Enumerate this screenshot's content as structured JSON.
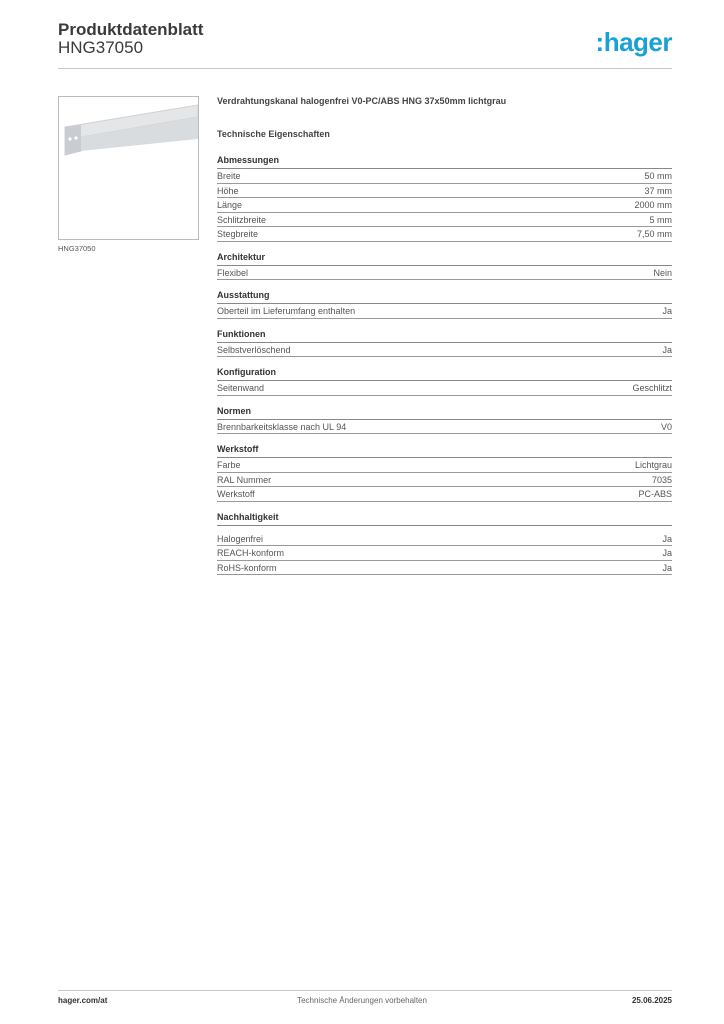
{
  "header": {
    "title": "Produktdatenblatt",
    "code": "HNG37050",
    "logo": ":hager",
    "logo_color": "#1aa0d8"
  },
  "image": {
    "caption": "HNG37050"
  },
  "product": {
    "name": "Verdrahtungskanal halogenfrei V0-PC/ABS HNG 37x50mm lichtgrau",
    "tech_heading": "Technische Eigenschaften"
  },
  "sections": [
    {
      "title": "Abmessungen",
      "rows": [
        [
          "Breite",
          "50 mm"
        ],
        [
          "Höhe",
          "37 mm"
        ],
        [
          "Länge",
          "2000 mm"
        ],
        [
          "Schlitzbreite",
          "5 mm"
        ],
        [
          "Stegbreite",
          "7,50 mm"
        ]
      ]
    },
    {
      "title": "Architektur",
      "rows": [
        [
          "Flexibel",
          "Nein"
        ]
      ]
    },
    {
      "title": "Ausstattung",
      "rows": [
        [
          "Oberteil im Lieferumfang enthalten",
          "Ja"
        ]
      ]
    },
    {
      "title": "Funktionen",
      "rows": [
        [
          "Selbstverlöschend",
          "Ja"
        ]
      ]
    },
    {
      "title": "Konfiguration",
      "rows": [
        [
          "Seitenwand",
          "Geschlitzt"
        ]
      ]
    },
    {
      "title": "Normen",
      "rows": [
        [
          "Brennbarkeitsklasse nach UL 94",
          "V0"
        ]
      ]
    },
    {
      "title": "Werkstoff",
      "rows": [
        [
          "Farbe",
          "Lichtgrau"
        ],
        [
          "RAL Nummer",
          "7035"
        ],
        [
          "Werkstoff",
          "PC-ABS"
        ]
      ]
    },
    {
      "title": "Nachhaltigkeit",
      "rows": [
        [
          "Halogenfrei",
          "Ja"
        ],
        [
          "REACH-konform",
          "Ja"
        ],
        [
          "RoHS-konform",
          "Ja"
        ]
      ]
    }
  ],
  "footer": {
    "website": "hager.com/at",
    "note": "Technische Änderungen vorbehalten",
    "date": "25.06.2025"
  }
}
